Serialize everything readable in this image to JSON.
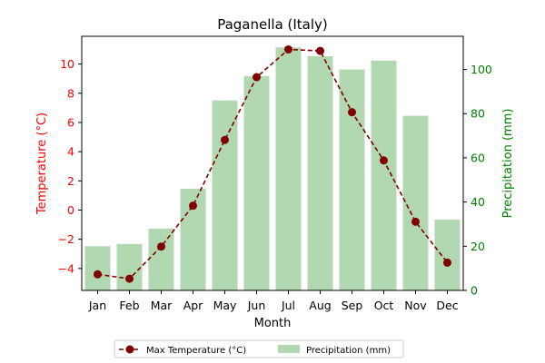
{
  "chart_data": {
    "type": "bar+line",
    "title": "Paganella (Italy)",
    "xlabel": "Month",
    "categories": [
      "Jan",
      "Feb",
      "Mar",
      "Apr",
      "May",
      "Jun",
      "Jul",
      "Aug",
      "Sep",
      "Oct",
      "Nov",
      "Dec"
    ],
    "y_left": {
      "label": "Temperature (°C)",
      "color": "#ff0000",
      "lim": [
        -5.5,
        11.9
      ],
      "ticks": [
        -4,
        -2,
        0,
        2,
        4,
        6,
        8,
        10
      ]
    },
    "y_right": {
      "label": "Precipitation (mm)",
      "color": "#008000",
      "lim": [
        0,
        115
      ],
      "ticks": [
        0,
        20,
        40,
        60,
        80,
        100
      ]
    },
    "series": [
      {
        "name": "Max Temperature (°C)",
        "type": "line",
        "axis": "left",
        "color": "#800000",
        "line_style": "dashed",
        "marker": "circle",
        "values": [
          -4.4,
          -4.7,
          -2.5,
          0.3,
          4.8,
          9.1,
          11.0,
          10.9,
          6.7,
          3.4,
          -0.8,
          -3.6
        ]
      },
      {
        "name": "Precipitation (mm)",
        "type": "bar",
        "axis": "right",
        "color": "#b2d8b2",
        "values": [
          20,
          21,
          28,
          46,
          86,
          97,
          110,
          106,
          100,
          104,
          79,
          32
        ]
      }
    ],
    "legend": {
      "placement": "bottom-center",
      "columns": 2
    },
    "grid": false
  }
}
